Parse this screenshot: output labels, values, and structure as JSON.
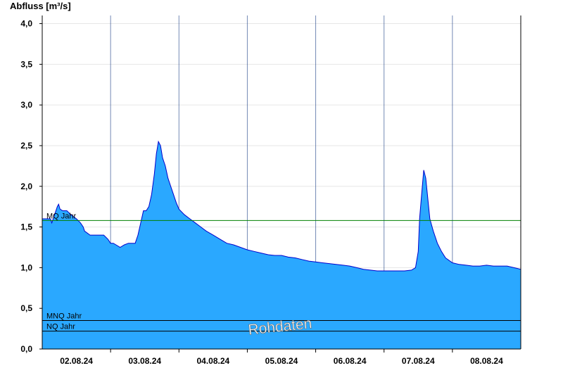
{
  "chart_data": {
    "type": "area",
    "ylabel": "Abfluss [m³/s]",
    "ylim": [
      0,
      4.1
    ],
    "yticks": [
      0,
      0.5,
      1,
      1.5,
      2,
      2.5,
      3,
      3.5,
      4
    ],
    "ytick_labels": [
      "0,0",
      "0,5",
      "1,0",
      "1,5",
      "2,0",
      "2,5",
      "3,0",
      "3,5",
      "4,0"
    ],
    "xlim": [
      0,
      7
    ],
    "day_boundaries": [
      1,
      2,
      3,
      4,
      5,
      6
    ],
    "x_tick_positions": [
      0.5,
      1.5,
      2.5,
      3.5,
      4.5,
      5.5,
      6.5
    ],
    "xticks": [
      "02.08.24",
      "03.08.24",
      "04.08.24",
      "05.08.24",
      "06.08.24",
      "07.08.24",
      "08.08.24"
    ],
    "grid": true,
    "fill_color": "#2aa8ff",
    "line_color": "#0000cc",
    "series": [
      {
        "x": [
          0,
          0.12,
          0.14,
          0.18,
          0.22,
          0.24,
          0.26,
          0.3,
          0.36,
          0.42,
          0.5,
          0.56,
          0.6,
          0.62,
          0.7,
          0.8,
          0.9,
          0.96,
          1.0,
          1.04,
          1.08,
          1.14,
          1.2,
          1.26,
          1.32,
          1.36,
          1.4,
          1.44,
          1.48,
          1.52,
          1.56,
          1.6,
          1.64,
          1.67,
          1.7,
          1.73,
          1.76,
          1.8,
          1.84,
          1.88,
          1.92,
          1.96,
          2.0,
          2.08,
          2.16,
          2.24,
          2.32,
          2.4,
          2.5,
          2.6,
          2.7,
          2.8,
          2.9,
          3.0,
          3.1,
          3.2,
          3.3,
          3.4,
          3.5,
          3.6,
          3.7,
          3.8,
          3.9,
          4.0,
          4.1,
          4.2,
          4.3,
          4.4,
          4.5,
          4.6,
          4.7,
          4.8,
          4.9,
          5.0,
          5.1,
          5.2,
          5.3,
          5.4,
          5.46,
          5.5,
          5.52,
          5.55,
          5.58,
          5.61,
          5.64,
          5.67,
          5.72,
          5.78,
          5.84,
          5.9,
          6.0,
          6.1,
          6.2,
          6.3,
          6.4,
          6.5,
          6.6,
          6.7,
          6.8,
          6.9,
          7.0
        ],
        "y": [
          1.6,
          1.6,
          1.55,
          1.65,
          1.75,
          1.78,
          1.72,
          1.7,
          1.7,
          1.65,
          1.6,
          1.55,
          1.5,
          1.45,
          1.4,
          1.4,
          1.4,
          1.35,
          1.3,
          1.3,
          1.28,
          1.25,
          1.28,
          1.3,
          1.3,
          1.3,
          1.4,
          1.55,
          1.7,
          1.7,
          1.75,
          1.9,
          2.15,
          2.4,
          2.55,
          2.5,
          2.35,
          2.25,
          2.1,
          2.0,
          1.9,
          1.8,
          1.72,
          1.65,
          1.6,
          1.55,
          1.5,
          1.45,
          1.4,
          1.35,
          1.3,
          1.28,
          1.25,
          1.22,
          1.2,
          1.18,
          1.16,
          1.15,
          1.15,
          1.13,
          1.12,
          1.1,
          1.08,
          1.07,
          1.06,
          1.05,
          1.04,
          1.03,
          1.02,
          1.0,
          0.98,
          0.97,
          0.96,
          0.96,
          0.96,
          0.96,
          0.96,
          0.97,
          1.0,
          1.2,
          1.6,
          1.9,
          2.2,
          2.1,
          1.85,
          1.6,
          1.45,
          1.3,
          1.2,
          1.12,
          1.06,
          1.04,
          1.03,
          1.02,
          1.02,
          1.03,
          1.02,
          1.02,
          1.02,
          1.0,
          0.98
        ]
      }
    ],
    "reference_lines": [
      {
        "label": "MQ Jahr",
        "value": 1.58,
        "color": "#008000"
      },
      {
        "label": "MNQ Jahr",
        "value": 0.35,
        "color": "#000000"
      },
      {
        "label": "NQ Jahr",
        "value": 0.22,
        "color": "#000000"
      }
    ],
    "watermark": "Rohdaten"
  }
}
